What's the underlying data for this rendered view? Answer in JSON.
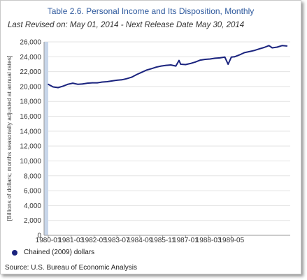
{
  "chart_data": {
    "type": "line",
    "title": "Table 2.6. Personal Income and Its Disposition, Monthly",
    "subtitle": "Last Revised on: May 01, 2014 - Next Release Date May 30, 2014",
    "ylabel": "[Billions of dollars; months seasonally adjusted at annual rates]",
    "xlabel": "",
    "ylim": [
      0,
      26000
    ],
    "y_ticks": [
      "0",
      "2,000",
      "4,000",
      "6,000",
      "8,000",
      "10,000",
      "12,000",
      "14,000",
      "16,000",
      "18,000",
      "20,000",
      "22,000",
      "24,000",
      "26,000"
    ],
    "x_tick_labels": [
      "1980-01",
      "1981-03",
      "1982-05",
      "1983-07",
      "1984-09",
      "1985-11",
      "1987-01",
      "1988-03",
      "1989-05"
    ],
    "grid": true,
    "legend_position": "bottom-left",
    "series": [
      {
        "name": "Chained (2009) dollars",
        "color": "#1a237e",
        "points": [
          [
            0,
            20300
          ],
          [
            3,
            19950
          ],
          [
            6,
            19850
          ],
          [
            9,
            20050
          ],
          [
            12,
            20300
          ],
          [
            15,
            20450
          ],
          [
            18,
            20300
          ],
          [
            21,
            20350
          ],
          [
            24,
            20450
          ],
          [
            27,
            20500
          ],
          [
            30,
            20500
          ],
          [
            33,
            20600
          ],
          [
            36,
            20650
          ],
          [
            39,
            20750
          ],
          [
            42,
            20850
          ],
          [
            45,
            20900
          ],
          [
            48,
            21050
          ],
          [
            51,
            21250
          ],
          [
            54,
            21600
          ],
          [
            57,
            21900
          ],
          [
            60,
            22200
          ],
          [
            63,
            22400
          ],
          [
            66,
            22600
          ],
          [
            69,
            22750
          ],
          [
            72,
            22850
          ],
          [
            75,
            22900
          ],
          [
            78,
            22750
          ],
          [
            80,
            23500
          ],
          [
            81,
            23000
          ],
          [
            84,
            22950
          ],
          [
            87,
            23100
          ],
          [
            90,
            23300
          ],
          [
            93,
            23550
          ],
          [
            96,
            23650
          ],
          [
            99,
            23700
          ],
          [
            102,
            23800
          ],
          [
            105,
            23850
          ],
          [
            108,
            23950
          ],
          [
            110,
            23000
          ],
          [
            112,
            23950
          ],
          [
            114,
            24000
          ],
          [
            117,
            24250
          ],
          [
            120,
            24550
          ],
          [
            123,
            24700
          ],
          [
            126,
            24850
          ],
          [
            129,
            25050
          ],
          [
            132,
            25250
          ],
          [
            135,
            25500
          ],
          [
            137,
            25200
          ],
          [
            140,
            25300
          ],
          [
            143,
            25500
          ],
          [
            146,
            25450
          ]
        ]
      }
    ]
  },
  "legend": {
    "label": "Chained (2009) dollars",
    "color": "#1a237e"
  },
  "source": "Source: U.S. Bureau of Economic Analysis"
}
